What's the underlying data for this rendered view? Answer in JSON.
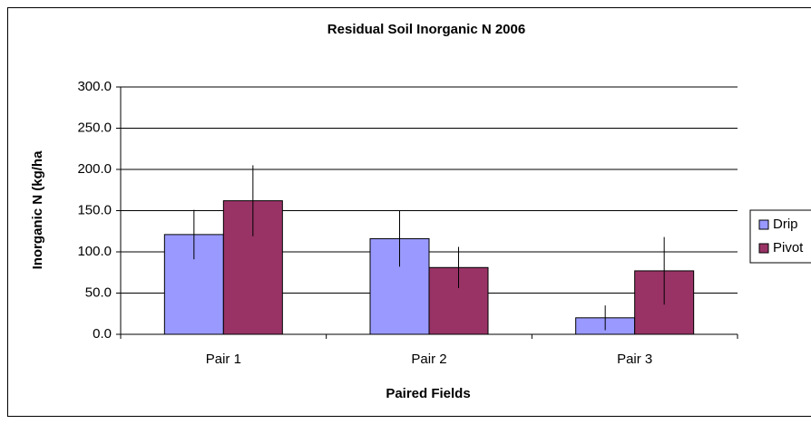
{
  "chart_data": {
    "type": "bar",
    "title": "Residual Soil Inorganic N 2006",
    "x_label": "Paired Fields",
    "y_label": "Inorganic N (kg/ha",
    "categories": [
      "Pair 1",
      "Pair 2",
      "Pair 3"
    ],
    "series": [
      {
        "name": "Drip",
        "color": "#9999ff",
        "values": [
          121,
          116,
          20
        ],
        "errors": [
          30,
          34,
          15
        ]
      },
      {
        "name": "Pivot",
        "color": "#993366",
        "values": [
          162,
          81,
          77
        ],
        "errors": [
          43,
          25,
          41
        ]
      }
    ],
    "ylim": [
      0,
      300
    ],
    "yticks": [
      {
        "value": 0,
        "label": "0.0"
      },
      {
        "value": 50,
        "label": "50.0"
      },
      {
        "value": 100,
        "label": "100.0"
      },
      {
        "value": 150,
        "label": "150.0"
      },
      {
        "value": 200,
        "label": "200.0"
      },
      {
        "value": 250,
        "label": "250.0"
      },
      {
        "value": 300,
        "label": "300.0"
      }
    ],
    "grid": true
  }
}
